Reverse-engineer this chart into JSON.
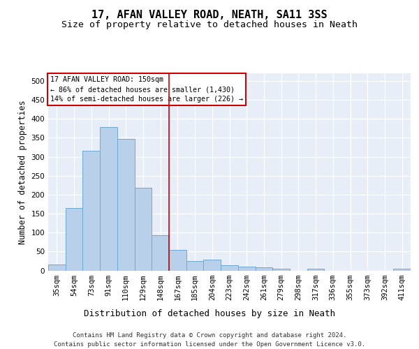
{
  "title": "17, AFAN VALLEY ROAD, NEATH, SA11 3SS",
  "subtitle": "Size of property relative to detached houses in Neath",
  "xlabel": "Distribution of detached houses by size in Neath",
  "ylabel": "Number of detached properties",
  "categories": [
    "35sqm",
    "54sqm",
    "73sqm",
    "91sqm",
    "110sqm",
    "129sqm",
    "148sqm",
    "167sqm",
    "185sqm",
    "204sqm",
    "223sqm",
    "242sqm",
    "261sqm",
    "279sqm",
    "298sqm",
    "317sqm",
    "336sqm",
    "355sqm",
    "373sqm",
    "392sqm",
    "411sqm"
  ],
  "values": [
    15,
    165,
    315,
    378,
    347,
    218,
    93,
    55,
    25,
    28,
    14,
    10,
    8,
    5,
    0,
    5,
    0,
    0,
    0,
    0,
    5
  ],
  "bar_color": "#b8d0ea",
  "bar_edge_color": "#6fa8d4",
  "vline_color": "#cc0000",
  "vline_x": 6.5,
  "annotation_line1": "17 AFAN VALLEY ROAD: 150sqm",
  "annotation_line2": "← 86% of detached houses are smaller (1,430)",
  "annotation_line3": "14% of semi-detached houses are larger (226) →",
  "annotation_box_edge_color": "#cc0000",
  "ylim": [
    0,
    520
  ],
  "yticks": [
    0,
    50,
    100,
    150,
    200,
    250,
    300,
    350,
    400,
    450,
    500
  ],
  "background_color": "#e8eef8",
  "grid_color": "#ffffff",
  "footer_line1": "Contains HM Land Registry data © Crown copyright and database right 2024.",
  "footer_line2": "Contains public sector information licensed under the Open Government Licence v3.0."
}
